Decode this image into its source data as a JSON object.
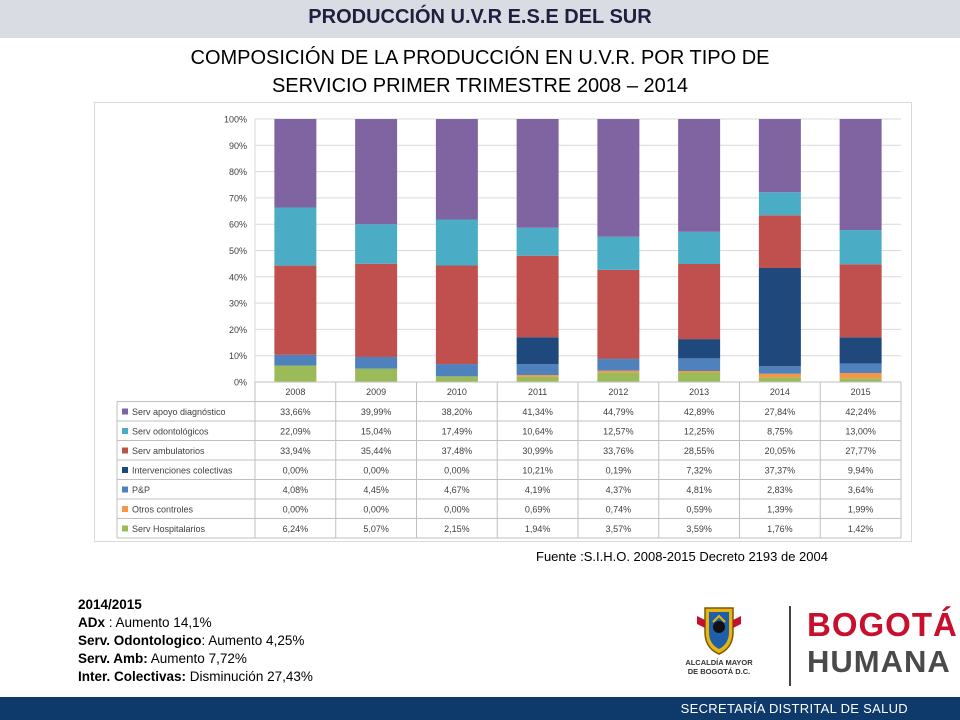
{
  "header": {
    "title": "PRODUCCIÓN U.V.R  E.S.E DEL SUR"
  },
  "subtitle": {
    "line1": "COMPOSICIÓN DE LA PRODUCCIÓN EN U.V.R. POR TIPO DE",
    "line2": "SERVICIO  PRIMER TRIMESTRE 2008 – 2014"
  },
  "source": "Fuente :S.I.H.O. 2008-2015  Decreto 2193 de 2004",
  "notes": {
    "heading": "2014/2015",
    "l1_label": "ADx",
    "l1_text": " : Aumento 14,1%",
    "l2_label": "Serv. Odontologico",
    "l2_text": ": Aumento 4,25%",
    "l3_label": "Serv. Amb:",
    "l3_text": " Aumento 7,72%",
    "l4_label": "Inter. Colectivas:",
    "l4_text": " Disminución 27,43%"
  },
  "logos": {
    "alcaldia": "ALCALDÍA MAYOR DE BOGOTÁ D.C.",
    "bogota": "BOGOTÁ",
    "humana": "HUMANA"
  },
  "footer": {
    "text": "SECRETARÍA DISTRITAL DE SALUD"
  },
  "colors": {
    "header_bg": "#d9dde3",
    "footer_bg": "#0d3a6b",
    "serv_hospitalarios": "#9bbb59",
    "otros_controles": "#f79646",
    "pyp": "#4f81bd",
    "intervenciones": "#1f497d",
    "serv_ambulatorios": "#c0504d",
    "serv_odontologicos": "#4bacc6",
    "serv_apoyo": "#8064a2"
  },
  "chart_data": {
    "type": "bar",
    "stacked": true,
    "categories": [
      "2008",
      "2009",
      "2010",
      "2011",
      "2012",
      "2013",
      "2014",
      "2015"
    ],
    "ylim": [
      0,
      100
    ],
    "yticks": [
      "0%",
      "10%",
      "20%",
      "30%",
      "40%",
      "50%",
      "60%",
      "70%",
      "80%",
      "90%",
      "100%"
    ],
    "grid": true,
    "series": [
      {
        "name": "Serv Hospitalarios",
        "color": "#9bbb59",
        "values": [
          6.24,
          5.07,
          2.15,
          1.94,
          3.57,
          3.59,
          1.76,
          1.42
        ],
        "labels": [
          "6,24%",
          "5,07%",
          "2,15%",
          "1,94%",
          "3,57%",
          "3,59%",
          "1,76%",
          "1,42%"
        ]
      },
      {
        "name": "Otros controles",
        "color": "#f79646",
        "values": [
          0,
          0,
          0,
          0.69,
          0.74,
          0.59,
          1.39,
          1.99
        ],
        "labels": [
          "0,00%",
          "0,00%",
          "0,00%",
          "0,69%",
          "0,74%",
          "0,59%",
          "1,39%",
          "1,99%"
        ]
      },
      {
        "name": "P&P",
        "color": "#4f81bd",
        "values": [
          4.08,
          4.45,
          4.67,
          4.19,
          4.37,
          4.81,
          2.83,
          3.64
        ],
        "labels": [
          "4,08%",
          "4,45%",
          "4,67%",
          "4,19%",
          "4,37%",
          "4,81%",
          "2,83%",
          "3,64%"
        ]
      },
      {
        "name": "Intervenciones colectivas",
        "color": "#1f497d",
        "values": [
          0,
          0,
          0,
          10.21,
          0.19,
          7.32,
          37.37,
          9.94
        ],
        "labels": [
          "0,00%",
          "0,00%",
          "0,00%",
          "10,21%",
          "0,19%",
          "7,32%",
          "37,37%",
          "9,94%"
        ]
      },
      {
        "name": "Serv ambulatorios",
        "color": "#c0504d",
        "values": [
          33.94,
          35.44,
          37.48,
          30.99,
          33.76,
          28.55,
          20.05,
          27.77
        ],
        "labels": [
          "33,94%",
          "35,44%",
          "37,48%",
          "30,99%",
          "33,76%",
          "28,55%",
          "20,05%",
          "27,77%"
        ]
      },
      {
        "name": "Serv odontológicos",
        "color": "#4bacc6",
        "values": [
          22.09,
          15.04,
          17.49,
          10.64,
          12.57,
          12.25,
          8.75,
          13.0
        ],
        "labels": [
          "22,09%",
          "15,04%",
          "17,49%",
          "10,64%",
          "12,57%",
          "12,25%",
          "8,75%",
          "13,00%"
        ]
      },
      {
        "name": "Serv apoyo diagnóstico",
        "color": "#8064a2",
        "values": [
          33.66,
          39.99,
          38.2,
          41.34,
          44.79,
          42.89,
          27.84,
          42.24
        ],
        "labels": [
          "33,66%",
          "39,99%",
          "38,20%",
          "41,34%",
          "44,79%",
          "42,89%",
          "27,84%",
          "42,24%"
        ]
      }
    ]
  }
}
